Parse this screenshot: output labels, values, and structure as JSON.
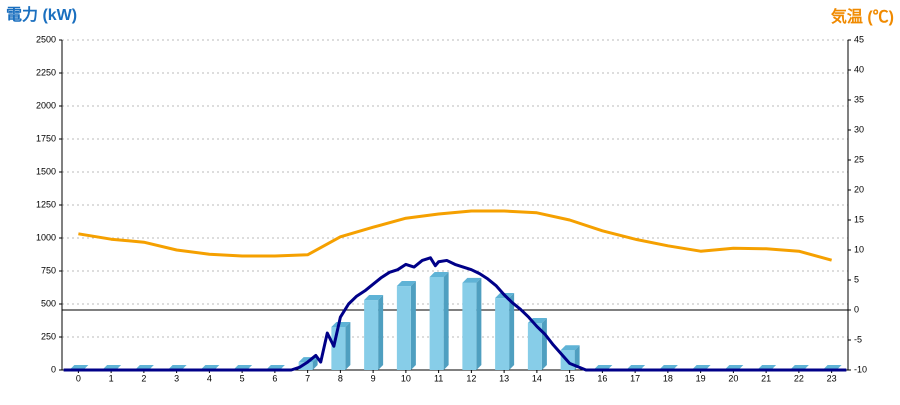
{
  "chart_data": {
    "type": "bar",
    "y_label": "電力 (kW)",
    "y2_label": "気温 (℃)",
    "categories": [
      "0",
      "1",
      "2",
      "3",
      "4",
      "5",
      "6",
      "7",
      "8",
      "9",
      "10",
      "11",
      "12",
      "13",
      "14",
      "15",
      "16",
      "17",
      "18",
      "19",
      "20",
      "21",
      "22",
      "23"
    ],
    "xlim": [
      -0.5,
      23.5
    ],
    "ylim": [
      0,
      2500
    ],
    "yticks": [
      0,
      250,
      500,
      750,
      1000,
      1250,
      1500,
      1750,
      2000,
      2250,
      2500
    ],
    "y2lim": [
      -10,
      45
    ],
    "y2ticks": [
      -10,
      -5,
      0,
      5,
      10,
      15,
      20,
      25,
      30,
      35,
      40,
      45
    ],
    "grid": true,
    "reference_line": {
      "axis": "y2",
      "value": 0,
      "color": "#000000"
    },
    "series": [
      {
        "type": "bar",
        "color": "#87cde8",
        "values": [
          0,
          0,
          0,
          0,
          0,
          0,
          0,
          60,
          326,
          530,
          636,
          705,
          660,
          545,
          356,
          150,
          0,
          0,
          0,
          0,
          0,
          0,
          0,
          0
        ]
      },
      {
        "type": "line",
        "color": "#000088",
        "x": [
          -0.45,
          6.5,
          6.75,
          7,
          7.25,
          7.4,
          7.6,
          7.8,
          8,
          8.25,
          8.5,
          8.75,
          9,
          9.25,
          9.5,
          9.75,
          10,
          10.25,
          10.5,
          10.75,
          10.9,
          11,
          11.25,
          11.5,
          11.75,
          12,
          12.25,
          12.5,
          12.75,
          13,
          13.25,
          13.5,
          13.75,
          14,
          14.25,
          14.5,
          14.75,
          15,
          15.5,
          23.45
        ],
        "values": [
          0,
          0,
          20,
          60,
          110,
          60,
          280,
          180,
          400,
          500,
          560,
          600,
          650,
          700,
          740,
          760,
          800,
          780,
          830,
          850,
          790,
          820,
          830,
          800,
          780,
          760,
          730,
          690,
          640,
          570,
          510,
          460,
          400,
          330,
          270,
          190,
          120,
          50,
          0,
          0
        ]
      },
      {
        "type": "line",
        "axis": "y2",
        "color": "#f5a000",
        "values": [
          12.7,
          11.8,
          11.3,
          10,
          9.3,
          9,
          9,
          9.2,
          12.2,
          13.8,
          15.3,
          16,
          16.5,
          16.5,
          16.2,
          15,
          13.2,
          11.8,
          10.7,
          9.8,
          10.3,
          10.2,
          9.8,
          8.3
        ]
      }
    ]
  }
}
